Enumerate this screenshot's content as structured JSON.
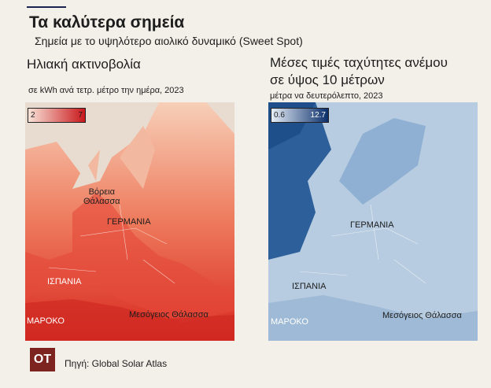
{
  "header": {
    "title": "Τα καλύτερα σημεία",
    "subtitle": "Σημεία με το υψηλότερο αιολικό δυναμικό (Sweet Spot)"
  },
  "solar": {
    "title": "Ηλιακή ακτινοβολία",
    "subtitle": "σε kWh ανά τετρ. μέτρο την ημέρα, 2023",
    "legend": {
      "min": 2,
      "max": 7
    },
    "labels": {
      "north_sea": [
        "Βόρεια",
        "Θάλασσα"
      ],
      "germany": "ΓΕΡΜΑΝΙΑ",
      "spain": "ΙΣΠΑΝΙΑ",
      "morocco": "ΜΑΡΟΚΟ",
      "mediterranean": "Μεσόγειος Θάλασσα"
    }
  },
  "wind": {
    "title": [
      "Μέσες τιμές ταχύτητες ανέμου",
      "σε ύψος 10 μέτρων"
    ],
    "subtitle": "μέτρα να δευτερόλεπτο, 2023",
    "legend": {
      "min": 0.6,
      "max": 12.7
    },
    "labels": {
      "germany": "ΓΕΡΜΑΝΙΑ",
      "spain": "ΙΣΠΑΝΙΑ",
      "morocco": "ΜΑΡΟΚΟ",
      "mediterranean": "Μεσόγειος Θάλασσα"
    }
  },
  "footer": {
    "logo": "OT",
    "source": "Πηγή: Global Solar Atlas"
  }
}
